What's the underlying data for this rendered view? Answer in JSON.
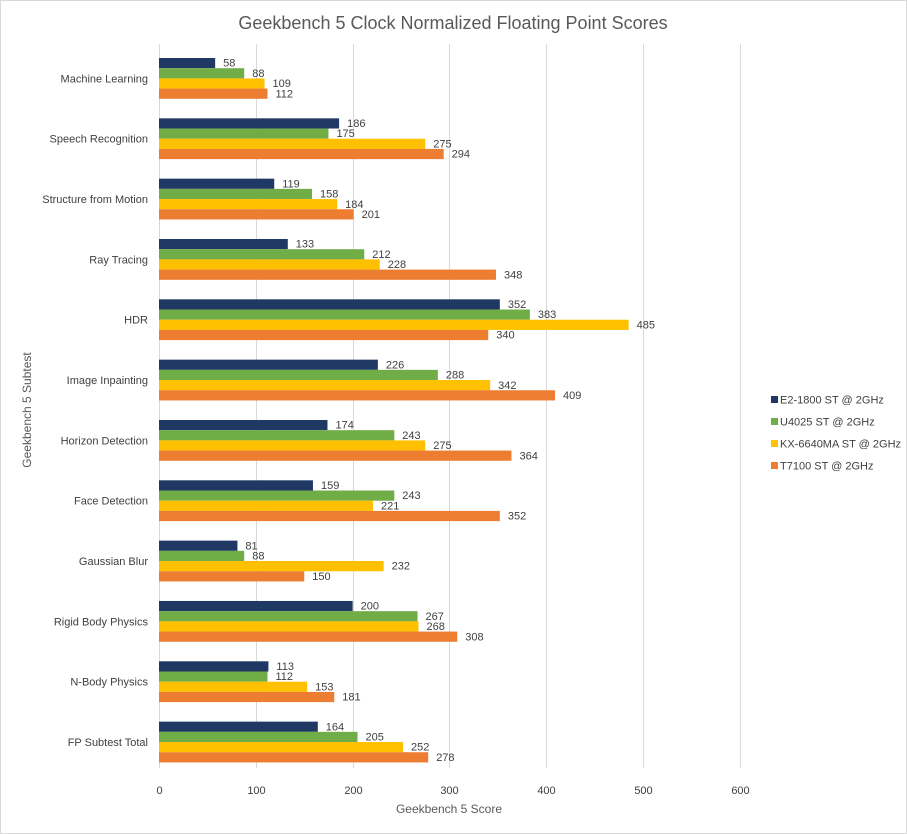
{
  "chart_data": {
    "type": "bar",
    "orientation": "horizontal",
    "title": "Geekbench 5 Clock Normalized Floating Point Scores",
    "xlabel": "Geekbench  5 Score",
    "ylabel": "Geekbench  5 Subtest",
    "xlim": [
      0,
      600
    ],
    "xticks": [
      0,
      100,
      200,
      300,
      400,
      500,
      600
    ],
    "grid": true,
    "legend_position": "right",
    "categories": [
      "Machine Learning",
      "Speech Recognition",
      "Structure from Motion",
      "Ray Tracing",
      "HDR",
      "Image Inpainting",
      "Horizon Detection",
      "Face Detection",
      "Gaussian Blur",
      "Rigid Body Physics",
      "N-Body Physics",
      "FP Subtest Total"
    ],
    "series": [
      {
        "name": "E2-1800 ST @ 2GHz",
        "color": "#203864",
        "values": [
          58,
          186,
          119,
          133,
          352,
          226,
          174,
          159,
          81,
          200,
          113,
          164
        ]
      },
      {
        "name": "U4025 ST @ 2GHz",
        "color": "#70ad47",
        "values": [
          88,
          175,
          158,
          212,
          383,
          288,
          243,
          243,
          88,
          267,
          112,
          205
        ]
      },
      {
        "name": "KX-6640MA ST @ 2GHz",
        "color": "#ffc000",
        "values": [
          109,
          275,
          184,
          228,
          485,
          342,
          275,
          221,
          232,
          268,
          153,
          252
        ]
      },
      {
        "name": "T7100 ST @ 2GHz",
        "color": "#ed7d31",
        "values": [
          112,
          294,
          201,
          348,
          340,
          409,
          364,
          352,
          150,
          308,
          181,
          278
        ]
      }
    ]
  }
}
